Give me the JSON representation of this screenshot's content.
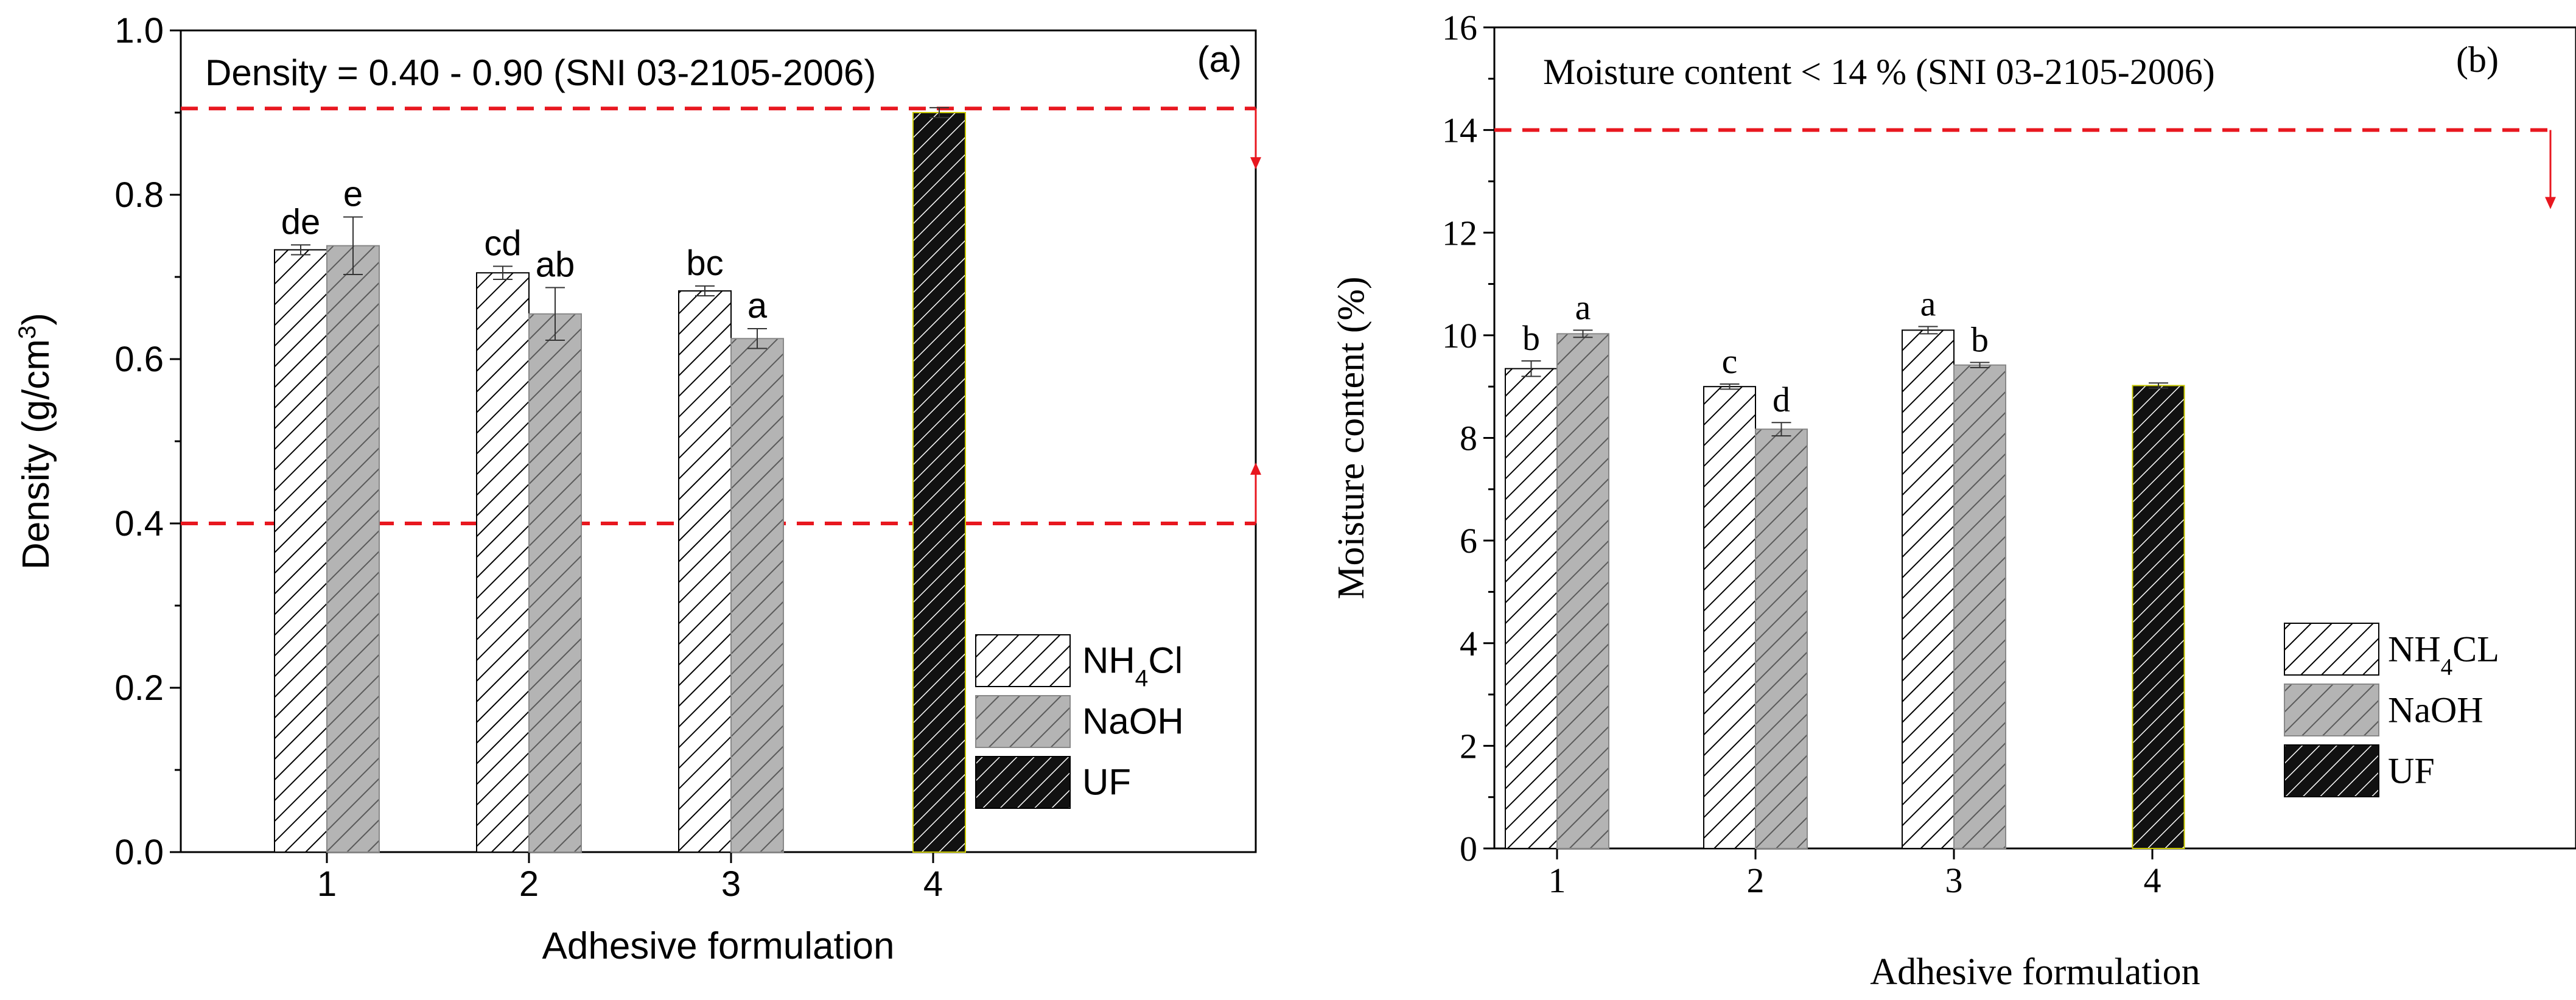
{
  "chart_data": [
    {
      "panel": "a",
      "type": "bar",
      "font": "sans",
      "panel_label": "(a)",
      "annotation": "Density = 0.40 - 0.90 (SNI 03-2105-2006)",
      "xlabel": "Adhesive formulation",
      "ylabel": {
        "base": "Density (g/cm",
        "sup": "3",
        "tail": ")"
      },
      "ylim": [
        0,
        1.0
      ],
      "yticks": [
        "0.0",
        "0.2",
        "0.4",
        "0.6",
        "0.8",
        "1.0"
      ],
      "categories": [
        "1",
        "2",
        "3",
        "4"
      ],
      "grid": false,
      "legend_position": "lower-right",
      "series": [
        {
          "name": "NH4Cl",
          "label_base": "NH",
          "label_sub": "4",
          "label_tail": "Cl",
          "pattern": "white-hatch",
          "values": [
            0.733,
            0.705,
            0.683,
            null
          ],
          "errors": [
            0.006,
            0.008,
            0.006,
            null
          ],
          "letters": [
            "de",
            "cd",
            "bc",
            null
          ]
        },
        {
          "name": "NaOH",
          "label_base": "NaOH",
          "label_sub": "",
          "label_tail": "",
          "pattern": "gray-hatch",
          "values": [
            0.738,
            0.655,
            0.625,
            null
          ],
          "errors": [
            0.035,
            0.032,
            0.012,
            null
          ],
          "letters": [
            "e",
            "ab",
            "a",
            null
          ]
        },
        {
          "name": "UF",
          "label_base": "UF",
          "label_sub": "",
          "label_tail": "",
          "pattern": "black-hatch",
          "values": [
            null,
            null,
            null,
            0.9
          ],
          "errors": [
            null,
            null,
            null,
            0.006
          ],
          "letters": [
            null,
            null,
            null,
            null
          ]
        }
      ],
      "reference_lines": [
        {
          "value": 0.905,
          "arrow": "down",
          "color": "#e8171f"
        },
        {
          "value": 0.4,
          "arrow": "up",
          "color": "#e8171f"
        }
      ]
    },
    {
      "panel": "b",
      "type": "bar",
      "font": "serif",
      "panel_label": "(b)",
      "annotation": "Moisture content < 14 % (SNI 03-2105-2006)",
      "xlabel": "Adhesive formulation",
      "ylabel": {
        "base": "Moisture content (%)",
        "sup": "",
        "tail": ""
      },
      "ylim": [
        0,
        16
      ],
      "yticks": [
        "0",
        "2",
        "4",
        "6",
        "8",
        "10",
        "12",
        "14",
        "16"
      ],
      "categories": [
        "1",
        "2",
        "3",
        "4"
      ],
      "grid": false,
      "legend_position": "lower-right",
      "series": [
        {
          "name": "NH4CL",
          "label_base": "NH",
          "label_sub": "4",
          "label_tail": "CL",
          "pattern": "white-hatch",
          "values": [
            9.35,
            9.0,
            10.1,
            null
          ],
          "errors": [
            0.15,
            0.05,
            0.07,
            null
          ],
          "letters": [
            "b",
            "c",
            "a",
            null
          ]
        },
        {
          "name": "NaOH",
          "label_base": "NaOH",
          "label_sub": "",
          "label_tail": "",
          "pattern": "gray-hatch",
          "values": [
            10.03,
            8.17,
            9.42,
            null
          ],
          "errors": [
            0.07,
            0.13,
            0.05,
            null
          ],
          "letters": [
            "a",
            "d",
            "b",
            null
          ]
        },
        {
          "name": "UF",
          "label_base": "UF",
          "label_sub": "",
          "label_tail": "",
          "pattern": "black-hatch",
          "values": [
            null,
            null,
            null,
            9.02
          ],
          "errors": [
            null,
            null,
            null,
            0.05
          ],
          "letters": [
            null,
            null,
            null,
            null
          ]
        }
      ],
      "reference_lines": [
        {
          "value": 14,
          "arrow": "down",
          "color": "#e8171f"
        }
      ]
    }
  ]
}
